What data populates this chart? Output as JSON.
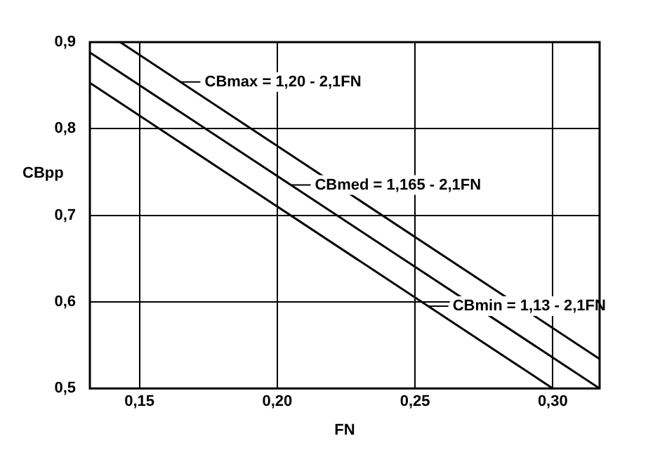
{
  "chart_data": {
    "type": "line",
    "xlabel": "FN",
    "ylabel": "CBpp",
    "xlim": [
      0.132,
      0.317
    ],
    "ylim": [
      0.5,
      0.9
    ],
    "xticks": [
      {
        "value": 0.15,
        "label": "0,15"
      },
      {
        "value": 0.2,
        "label": "0,20"
      },
      {
        "value": 0.25,
        "label": "0,25"
      },
      {
        "value": 0.3,
        "label": "0,30"
      }
    ],
    "yticks": [
      {
        "value": 0.5,
        "label": "0,5"
      },
      {
        "value": 0.6,
        "label": "0,6"
      },
      {
        "value": 0.7,
        "label": "0,7"
      },
      {
        "value": 0.8,
        "label": "0,8"
      },
      {
        "value": 0.9,
        "label": "0,9"
      }
    ],
    "series": [
      {
        "color": "#000000",
        "x": [
          0.143,
          0.317
        ],
        "values": [
          0.9,
          0.534
        ]
      },
      {
        "color": "#000000",
        "x": [
          0.132,
          0.317
        ],
        "values": [
          0.888,
          0.5
        ]
      },
      {
        "color": "#000000",
        "x": [
          0.132,
          0.3
        ],
        "values": [
          0.853,
          0.5
        ]
      }
    ],
    "annotations": [
      {
        "text": "CBmax = 1,20 - 2,1FN",
        "x": 0.165,
        "y": 0.854
      },
      {
        "text": "CBmed = 1,165 - 2,1FN",
        "x": 0.205,
        "y": 0.735
      },
      {
        "text": "CBmin = 1,13 - 2,1FN",
        "x": 0.255,
        "y": 0.595
      }
    ],
    "grid": true,
    "legend": false,
    "marker": "none",
    "line_style": "solid"
  }
}
